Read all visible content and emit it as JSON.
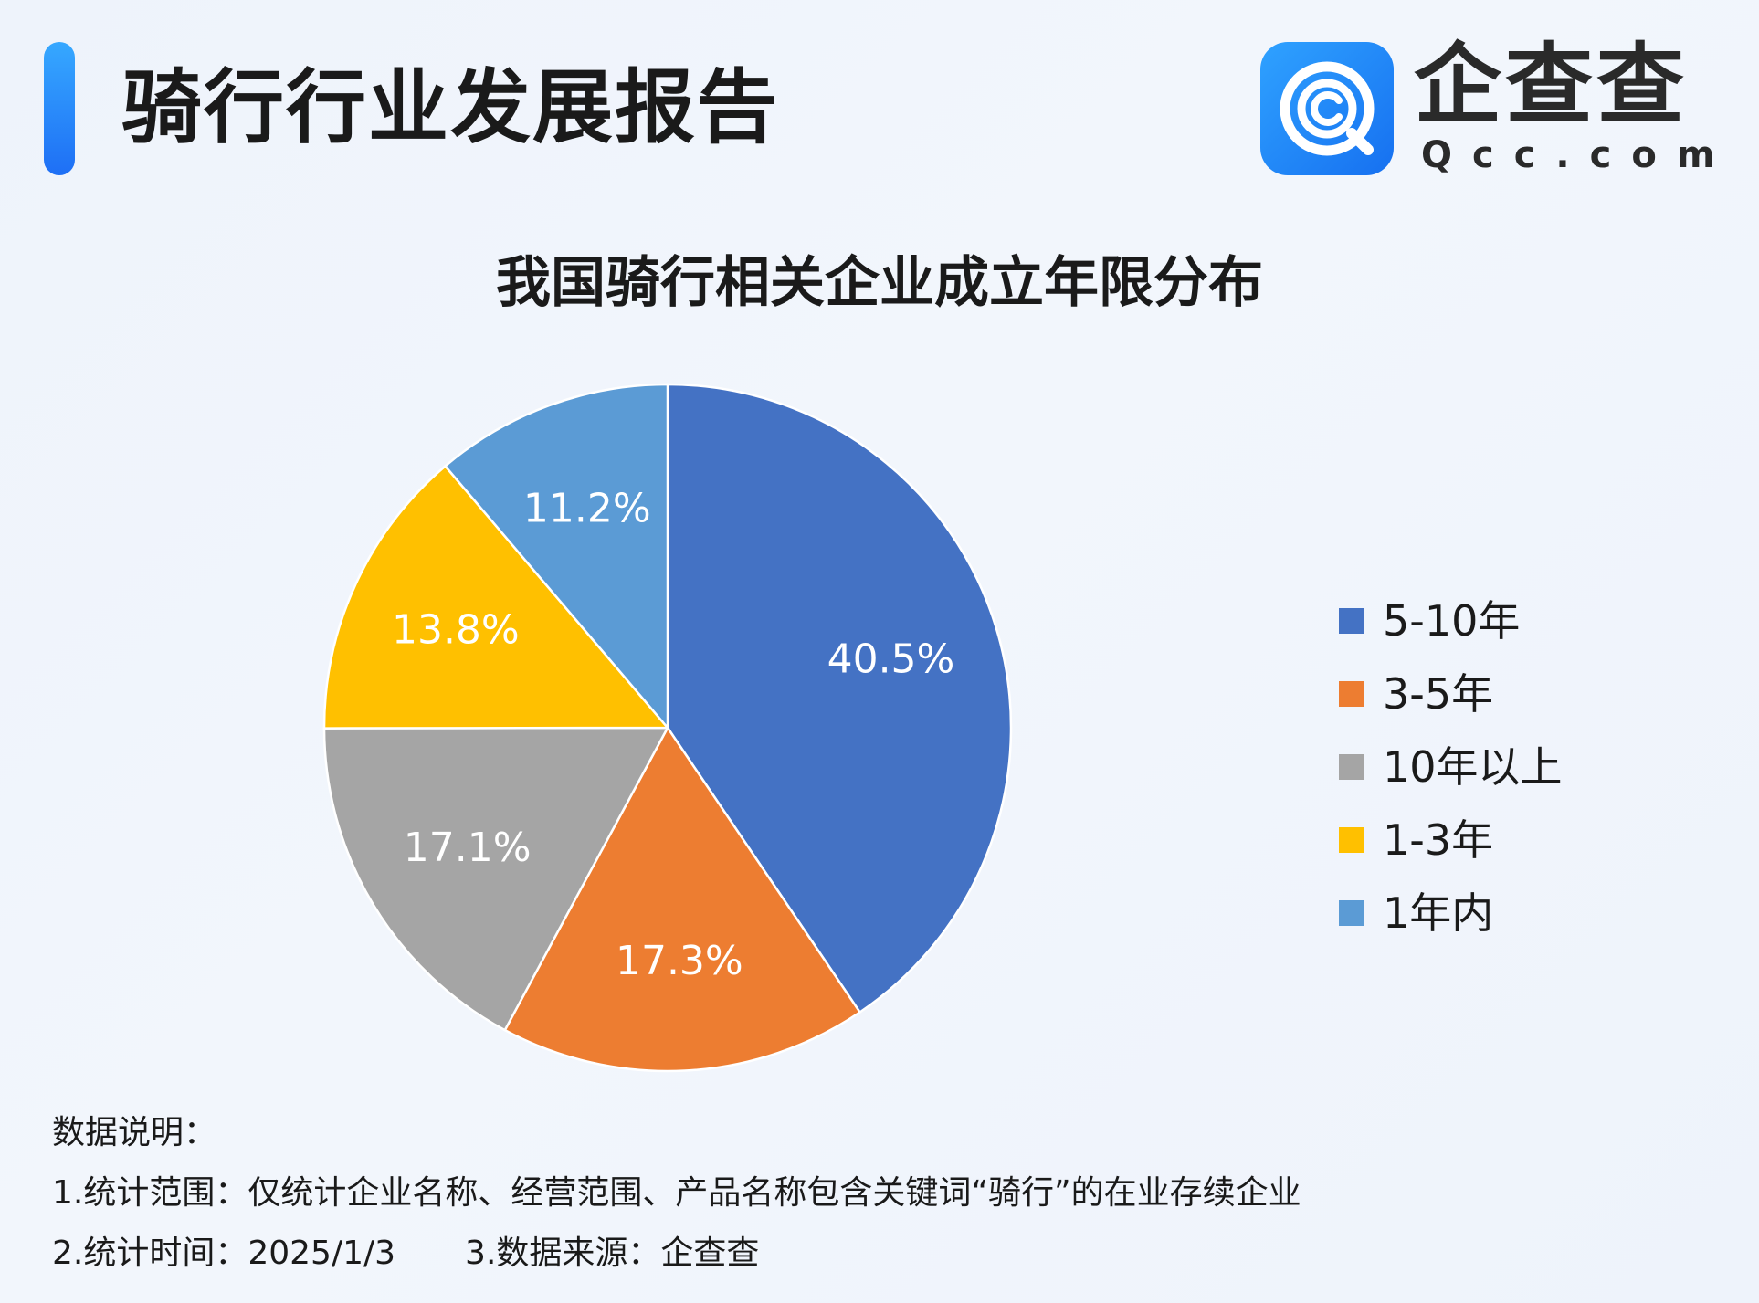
{
  "header": {
    "report_title": "骑行行业发展报告",
    "accent_color": "#1e7ef8"
  },
  "logo": {
    "name": "企查查",
    "domain": "Qcc.com",
    "icon": "qcc-logo-icon",
    "color": "#1e7ef8"
  },
  "chart_data": {
    "type": "pie",
    "title": "我国骑行相关企业成立年限分布",
    "legend_position": "right",
    "slices": [
      {
        "label": "5-10年",
        "value": 40.5,
        "display": "40.5%",
        "color": "#4472c4"
      },
      {
        "label": "3-5年",
        "value": 17.3,
        "display": "17.3%",
        "color": "#ed7d31"
      },
      {
        "label": "10年以上",
        "value": 17.1,
        "display": "17.1%",
        "color": "#a5a5a5"
      },
      {
        "label": "1-3年",
        "value": 13.8,
        "display": "13.8%",
        "color": "#ffc000"
      },
      {
        "label": "1年内",
        "value": 11.2,
        "display": "11.2%",
        "color": "#5b9bd5"
      }
    ]
  },
  "notes": {
    "heading": "数据说明：",
    "line1": "1.统计范围：仅统计企业名称、经营范围、产品名称包含关键词“骑行”的在业存续企业",
    "line2a": "2.统计时间：2025/1/3",
    "line2b": "3.数据来源：企查查"
  }
}
